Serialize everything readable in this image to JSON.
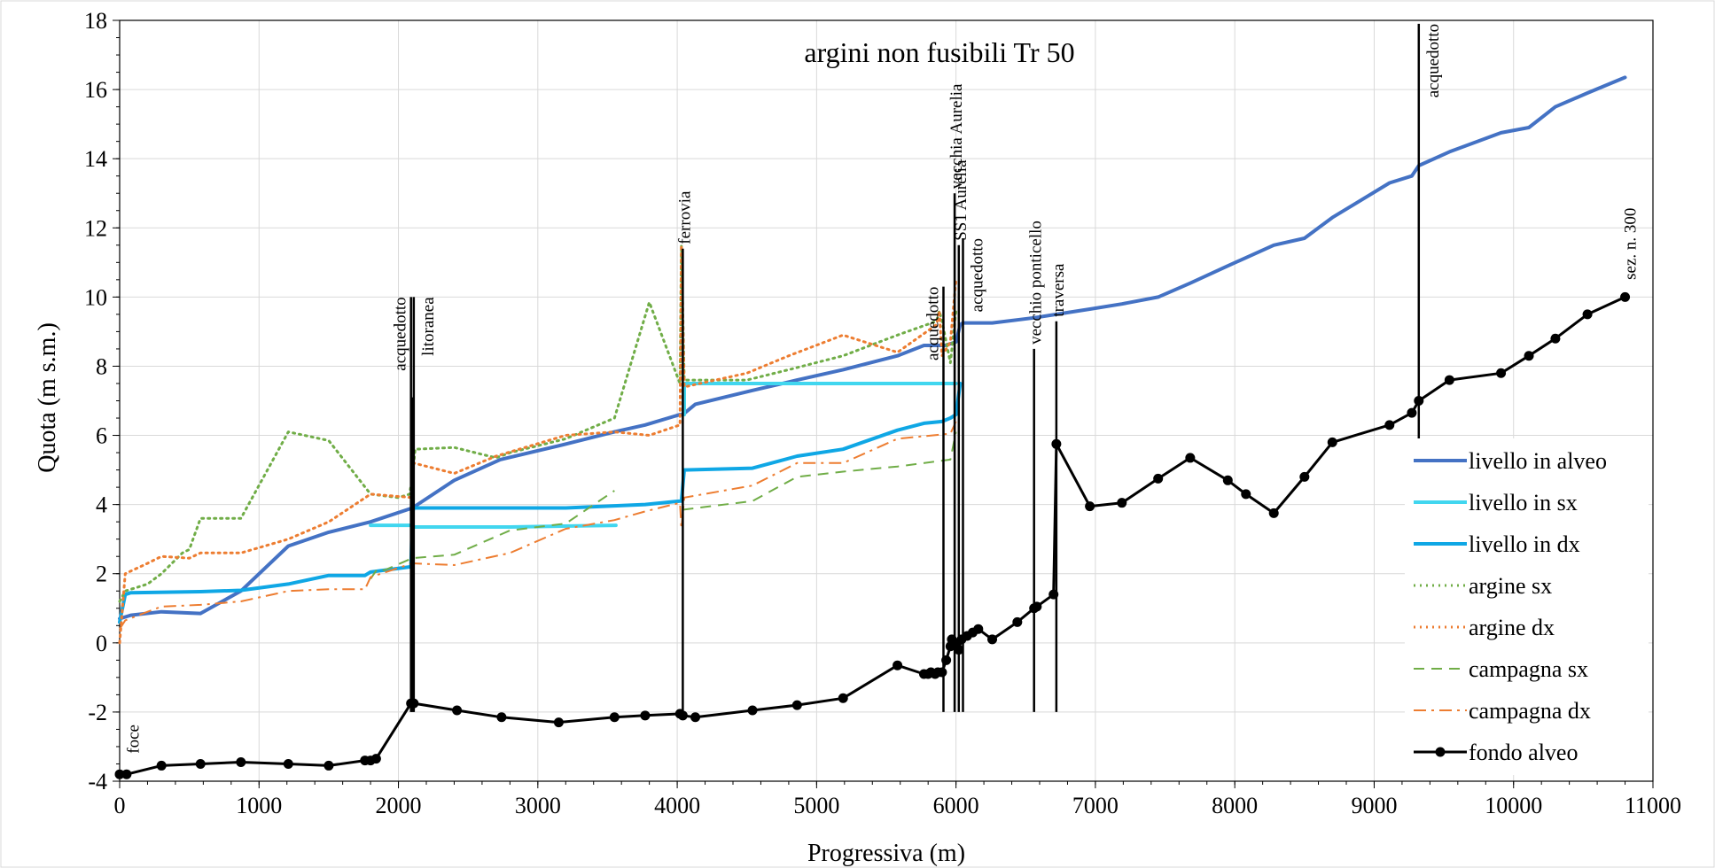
{
  "chart_data": {
    "type": "line",
    "title": "argini non fusibili Tr 50",
    "xlabel": "Progressiva (m)",
    "ylabel": "Quota (m s.m.)",
    "xlim": [
      0,
      11000
    ],
    "ylim": [
      -4,
      18
    ],
    "xticks": [
      0,
      1000,
      2000,
      3000,
      4000,
      5000,
      6000,
      7000,
      8000,
      9000,
      10000,
      11000
    ],
    "yticks": [
      -4,
      -2,
      0,
      2,
      4,
      6,
      8,
      10,
      12,
      14,
      16,
      18
    ],
    "grid": true,
    "legend_position": "right",
    "series": [
      {
        "name": "livello in alveo",
        "color": "#4472C4",
        "style": "solid",
        "width": 4,
        "x": [
          0,
          80,
          300,
          580,
          870,
          1210,
          1500,
          1800,
          2100,
          2400,
          2730,
          3150,
          3550,
          3770,
          4020,
          4040,
          4130,
          4540,
          4860,
          5190,
          5580,
          5770,
          5850,
          5920,
          5960,
          6000,
          6030,
          6050,
          6260,
          6560,
          6720,
          6960,
          7190,
          7450,
          7680,
          7950,
          8280,
          8500,
          8700,
          9110,
          9270,
          9320,
          9540,
          9910,
          10110,
          10300,
          10530,
          10800
        ],
        "y": [
          0.7,
          0.8,
          0.9,
          0.85,
          1.5,
          2.8,
          3.2,
          3.5,
          3.9,
          4.7,
          5.3,
          5.7,
          6.1,
          6.3,
          6.6,
          6.6,
          6.9,
          7.3,
          7.6,
          7.9,
          8.3,
          8.6,
          8.6,
          8.6,
          8.65,
          8.7,
          9.2,
          9.25,
          9.25,
          9.4,
          9.5,
          9.65,
          9.8,
          10.0,
          10.4,
          10.9,
          11.5,
          11.7,
          12.3,
          13.3,
          13.5,
          13.8,
          14.2,
          14.75,
          14.9,
          15.5,
          15.9,
          16.35
        ]
      },
      {
        "name": "livello in sx",
        "color": "#41D6EF",
        "style": "solid",
        "width": 4,
        "x": [
          1800,
          2100,
          2100,
          2200,
          2800,
          3560,
          null,
          4050,
          4050,
          4500,
          5000,
          5500,
          6000
        ],
        "y": [
          3.4,
          3.4,
          3.35,
          3.35,
          3.35,
          3.4,
          null,
          6.6,
          7.5,
          7.5,
          7.5,
          7.5,
          7.5
        ]
      },
      {
        "name": "livello in dx",
        "color": "#0FA7E5",
        "style": "solid",
        "width": 4,
        "x": [
          0,
          40,
          80,
          580,
          870,
          1210,
          1500,
          1760,
          1800,
          2090,
          2100,
          2110,
          3200,
          3770,
          4020,
          4030,
          4050,
          4540,
          4860,
          5190,
          5580,
          5770,
          5900,
          5960,
          6000,
          6030
        ],
        "y": [
          0.6,
          1.4,
          1.45,
          1.48,
          1.52,
          1.7,
          1.95,
          1.95,
          2.05,
          2.2,
          3.75,
          3.9,
          3.9,
          4.0,
          4.1,
          4.1,
          5.0,
          5.05,
          5.4,
          5.6,
          6.15,
          6.35,
          6.4,
          6.5,
          6.6,
          7.5
        ]
      },
      {
        "name": "argine sx",
        "color": "#70AD47",
        "style": "dotted",
        "width": 3,
        "x": [
          0,
          40,
          200,
          300,
          450,
          500,
          580,
          870,
          1210,
          1500,
          1800,
          2000,
          2080,
          2100,
          2120,
          2400,
          2700,
          2800,
          3200,
          3550,
          3800,
          4020,
          4030,
          4050,
          4500,
          4800,
          5190,
          5580,
          5860,
          5880,
          5900,
          5960,
          6000
        ],
        "y": [
          1.2,
          1.5,
          1.7,
          2.0,
          2.6,
          2.7,
          3.6,
          3.6,
          6.1,
          5.85,
          4.3,
          4.2,
          4.3,
          4.8,
          5.6,
          5.65,
          5.35,
          5.5,
          5.9,
          6.5,
          9.85,
          7.5,
          11.5,
          7.6,
          7.6,
          7.9,
          8.3,
          8.9,
          9.3,
          9.6,
          9.3,
          8.1,
          9.6
        ]
      },
      {
        "name": "argine dx",
        "color": "#ED7D31",
        "style": "dotted",
        "width": 3,
        "x": [
          0,
          40,
          200,
          300,
          500,
          580,
          870,
          1210,
          1500,
          1800,
          2100,
          2110,
          2400,
          2700,
          3200,
          3550,
          3800,
          4020,
          4030,
          4050,
          4500,
          4800,
          5190,
          5580,
          5860,
          5880,
          5900,
          5960,
          6000
        ],
        "y": [
          0.0,
          2.0,
          2.3,
          2.5,
          2.45,
          2.6,
          2.6,
          3.0,
          3.5,
          4.3,
          4.2,
          5.2,
          4.9,
          5.4,
          6.0,
          6.1,
          6.0,
          6.3,
          11.5,
          7.4,
          7.8,
          8.3,
          8.9,
          8.4,
          9.2,
          9.6,
          8.3,
          8.7,
          10.5
        ]
      },
      {
        "name": "campagna sx",
        "color": "#70AD47",
        "style": "dashed",
        "width": 2,
        "x": [
          1800,
          1850,
          1900,
          2100,
          2400,
          2800,
          3200,
          3550,
          null,
          4040,
          4540,
          4860,
          5190,
          5580,
          5960,
          6000
        ],
        "y": [
          1.85,
          2.15,
          2.1,
          2.45,
          2.55,
          3.25,
          3.45,
          4.4,
          null,
          3.85,
          4.1,
          4.8,
          4.95,
          5.1,
          5.3,
          6.1
        ]
      },
      {
        "name": "campagna dx",
        "color": "#ED7D31",
        "style": "dashdot",
        "width": 2,
        "x": [
          0,
          40,
          200,
          300,
          580,
          870,
          1210,
          1500,
          1760,
          1800,
          2100,
          2400,
          2800,
          3200,
          3550,
          3770,
          4020,
          4030,
          4050,
          4540,
          4860,
          5190,
          5580,
          5960,
          6000
        ],
        "y": [
          0.4,
          0.65,
          0.9,
          1.05,
          1.1,
          1.2,
          1.5,
          1.55,
          1.55,
          1.9,
          2.3,
          2.25,
          2.6,
          3.3,
          3.55,
          3.8,
          4.05,
          3.3,
          4.2,
          4.55,
          5.2,
          5.2,
          5.9,
          6.05,
          6.4
        ]
      },
      {
        "name": "fondo alveo",
        "color": "#000000",
        "style": "solid",
        "width": 3,
        "markers": true,
        "x": [
          0,
          50,
          300,
          580,
          870,
          1210,
          1500,
          1760,
          1800,
          1840,
          2090,
          2110,
          2420,
          2740,
          3150,
          3550,
          3770,
          4020,
          4040,
          4130,
          4540,
          4860,
          5190,
          5580,
          5770,
          5800,
          5820,
          5850,
          5870,
          5900,
          5930,
          5960,
          5970,
          6000,
          6020,
          6040,
          6080,
          6120,
          6160,
          6260,
          6440,
          6560,
          6580,
          6700,
          6720,
          6960,
          7190,
          7450,
          7680,
          7950,
          8080,
          8280,
          8500,
          8700,
          9110,
          9270,
          9320,
          9540,
          9910,
          10110,
          10300,
          10530,
          10800
        ],
        "y": [
          -3.8,
          -3.8,
          -3.55,
          -3.5,
          -3.45,
          -3.5,
          -3.55,
          -3.4,
          -3.4,
          -3.35,
          -1.75,
          -1.75,
          -1.95,
          -2.15,
          -2.3,
          -2.15,
          -2.1,
          -2.05,
          -2.1,
          -2.15,
          -1.95,
          -1.8,
          -1.6,
          -0.65,
          -0.9,
          -0.9,
          -0.85,
          -0.9,
          -0.85,
          -0.85,
          -0.5,
          -0.1,
          0.1,
          0.0,
          -0.2,
          0.1,
          0.2,
          0.3,
          0.4,
          0.1,
          0.6,
          1.0,
          1.05,
          1.4,
          5.75,
          3.95,
          4.05,
          4.75,
          5.35,
          4.7,
          4.3,
          3.75,
          4.8,
          5.8,
          6.3,
          6.65,
          7.0,
          7.6,
          7.8,
          8.3,
          8.8,
          9.5,
          10.0
        ]
      }
    ],
    "vertical_markers": [
      {
        "x": 2090,
        "y_top": 10.0,
        "label": "acquedotto",
        "label_side": "left"
      },
      {
        "x": 2100,
        "y_top": 7.1,
        "label": "",
        "label_side": "none"
      },
      {
        "x": 2110,
        "y_top": 10.0,
        "label": "litoranea",
        "label_side": "right"
      },
      {
        "x": 4040,
        "y_top": 11.4,
        "label": "ferrovia",
        "label_side": "top"
      },
      {
        "x": 5910,
        "y_top": 10.3,
        "label": "acquedotto",
        "label_side": "left"
      },
      {
        "x": 5990,
        "y_top": 13.0,
        "label": "vecchia Aurelia",
        "label_side": "top"
      },
      {
        "x": 6020,
        "y_top": 11.5,
        "label": "SS1 Aurelia",
        "label_side": "top"
      },
      {
        "x": 6050,
        "y_top": 11.7,
        "label": "acquedotto",
        "label_side": "right"
      },
      {
        "x": 6560,
        "y_top": 8.5,
        "label": "vecchio ponticello",
        "label_side": "top"
      },
      {
        "x": 6720,
        "y_top": 9.3,
        "label": "traversa",
        "label_side": "top"
      },
      {
        "x": 9320,
        "y_top": 17.9,
        "label": "acquedotto",
        "label_side": "right"
      }
    ],
    "annotations": [
      {
        "x": 60,
        "y": -3.2,
        "text": "foce"
      },
      {
        "x": 10800,
        "y": 10.5,
        "text": "sez. n. 300"
      }
    ]
  }
}
